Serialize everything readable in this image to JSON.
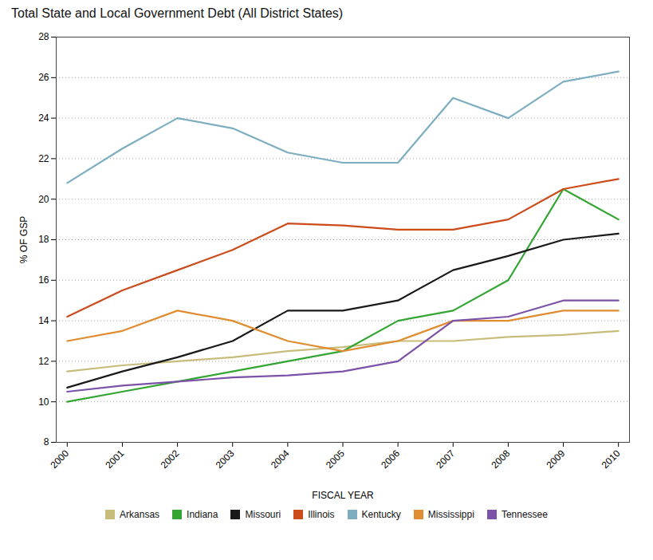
{
  "chart_data": {
    "type": "line",
    "title": "Total State and Local Government Debt (All District States)",
    "x_label": "FISCAL YEAR",
    "y_label": "% OF GSP",
    "x": [
      2000,
      2001,
      2002,
      2003,
      2004,
      2005,
      2006,
      2007,
      2008,
      2009,
      2010
    ],
    "series": [
      {
        "name": "Arkansas",
        "color": "#c8bc7a",
        "values": [
          11.5,
          11.8,
          12.0,
          12.2,
          12.5,
          12.7,
          13.0,
          13.0,
          13.2,
          13.3,
          13.5
        ]
      },
      {
        "name": "Indiana",
        "color": "#33a533",
        "values": [
          10.0,
          10.5,
          11.0,
          11.5,
          12.0,
          12.5,
          14.0,
          14.5,
          16.0,
          20.5,
          19.0
        ]
      },
      {
        "name": "Missouri",
        "color": "#1a1a1a",
        "values": [
          10.7,
          11.5,
          12.2,
          13.0,
          14.5,
          14.5,
          15.0,
          16.5,
          17.2,
          18.0,
          18.3
        ]
      },
      {
        "name": "Illinois",
        "color": "#cc4b1a",
        "values": [
          14.2,
          15.5,
          16.5,
          17.5,
          18.8,
          18.7,
          18.5,
          18.5,
          19.0,
          20.5,
          21.0
        ]
      },
      {
        "name": "Kentucky",
        "color": "#7daec0",
        "values": [
          20.8,
          22.5,
          24.0,
          23.5,
          22.3,
          21.8,
          21.8,
          25.0,
          24.0,
          25.8,
          26.3
        ]
      },
      {
        "name": "Mississippi",
        "color": "#e08c30",
        "values": [
          13.0,
          13.5,
          14.5,
          14.0,
          13.0,
          12.5,
          13.0,
          14.0,
          14.0,
          14.5,
          14.5
        ]
      },
      {
        "name": "Tennessee",
        "color": "#7b52a8",
        "values": [
          10.5,
          10.8,
          11.0,
          11.2,
          11.3,
          11.5,
          12.0,
          14.0,
          14.2,
          15.0,
          15.0
        ]
      }
    ],
    "xlim": [
      1999.8,
      2010.2
    ],
    "xticks": [
      2000,
      2001,
      2002,
      2003,
      2004,
      2005,
      2006,
      2007,
      2008,
      2009,
      2010
    ],
    "ylim": [
      8,
      28
    ],
    "yticks": [
      8,
      10,
      12,
      14,
      16,
      18,
      20,
      22,
      24,
      26,
      28
    ],
    "grid": true,
    "legend": "bottom"
  }
}
